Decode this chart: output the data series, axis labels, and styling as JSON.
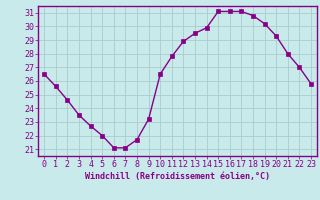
{
  "x": [
    0,
    1,
    2,
    3,
    4,
    5,
    6,
    7,
    8,
    9,
    10,
    11,
    12,
    13,
    14,
    15,
    16,
    17,
    18,
    19,
    20,
    21,
    22,
    23
  ],
  "y": [
    26.5,
    25.6,
    24.6,
    23.5,
    22.7,
    22.0,
    21.1,
    21.1,
    21.7,
    23.2,
    26.5,
    27.8,
    28.9,
    29.5,
    29.9,
    31.1,
    31.1,
    31.1,
    30.8,
    30.2,
    29.3,
    28.0,
    27.0,
    25.8
  ],
  "line_color": "#880088",
  "marker": "s",
  "marker_size": 2.5,
  "bg_color": "#c8eaea",
  "grid_color": "#aacccc",
  "xlabel": "Windchill (Refroidissement éolien,°C)",
  "ylabel_ticks": [
    21,
    22,
    23,
    24,
    25,
    26,
    27,
    28,
    29,
    30,
    31
  ],
  "xlim": [
    -0.5,
    23.5
  ],
  "ylim": [
    20.5,
    31.5
  ],
  "xlabel_fontsize": 6.0,
  "tick_fontsize": 6.0,
  "spine_color": "#880088",
  "title": ""
}
